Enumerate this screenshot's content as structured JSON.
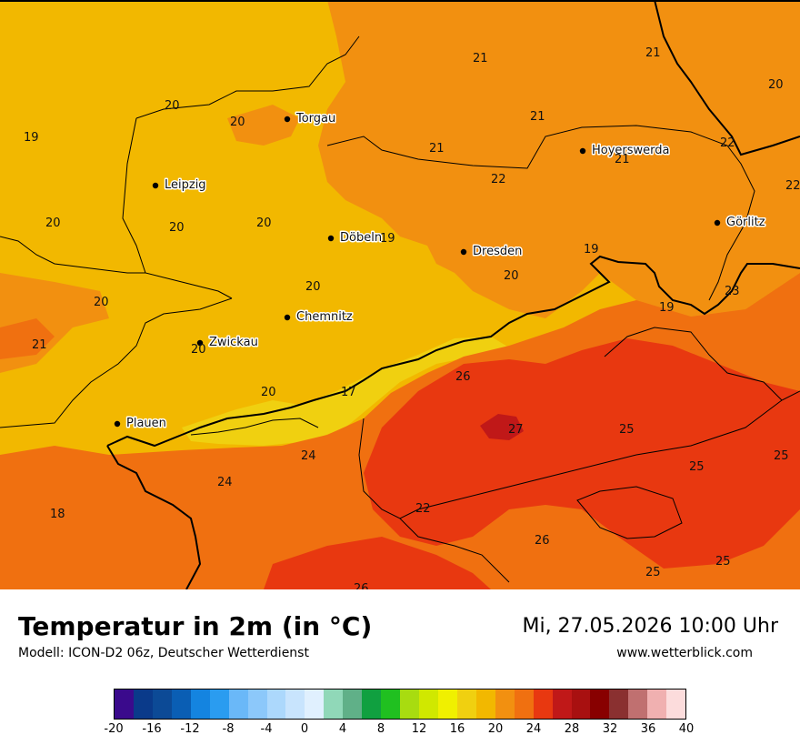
{
  "header": {
    "title": "Temperatur in 2m (in °C)",
    "model": "Modell: ICON-D2 06z, Deutscher Wetterdienst",
    "datetime": "Mi, 27.05.2026 10:00 Uhr",
    "website": "www.wetterblick.com"
  },
  "cities": [
    {
      "name": "Torgau"
    },
    {
      "name": "Leipzig"
    },
    {
      "name": "Hoyerswerda"
    },
    {
      "name": "Görlitz"
    },
    {
      "name": "Döbeln"
    },
    {
      "name": "Dresden"
    },
    {
      "name": "Chemnitz"
    },
    {
      "name": "Zwickau"
    },
    {
      "name": "Plauen"
    }
  ],
  "temperature_labels": [
    "21",
    "21",
    "20",
    "20",
    "20",
    "19",
    "21",
    "21",
    "22",
    "21",
    "22",
    "20",
    "20",
    "20",
    "19",
    "22",
    "19",
    "20",
    "20",
    "23",
    "19",
    "20",
    "21",
    "20",
    "17",
    "26",
    "20",
    "27",
    "25",
    "24",
    "25",
    "25",
    "24",
    "18",
    "22",
    "26",
    "25",
    "25",
    "26"
  ],
  "legend": {
    "colors": [
      "#3a0a8c",
      "#0a3a8a",
      "#0c4a96",
      "#0a5eb4",
      "#1484e0",
      "#2a9cf0",
      "#6ab8f8",
      "#8cc8fa",
      "#acd8fc",
      "#c8e4fd",
      "#e0f0fe",
      "#90d8b8",
      "#60b088",
      "#10a040",
      "#20c020",
      "#a8dc10",
      "#d0e800",
      "#f0f000",
      "#f0d010",
      "#f2b800",
      "#f29010",
      "#f07010",
      "#e83810",
      "#c01818",
      "#a81010",
      "#880000",
      "#8a3030",
      "#c07070",
      "#f0b0b0",
      "#fcdcdc"
    ],
    "ticks": [
      "-20",
      "-16",
      "-12",
      "-8",
      "-4",
      "0",
      "4",
      "8",
      "12",
      "16",
      "20",
      "24",
      "28",
      "32",
      "36",
      "40"
    ]
  }
}
